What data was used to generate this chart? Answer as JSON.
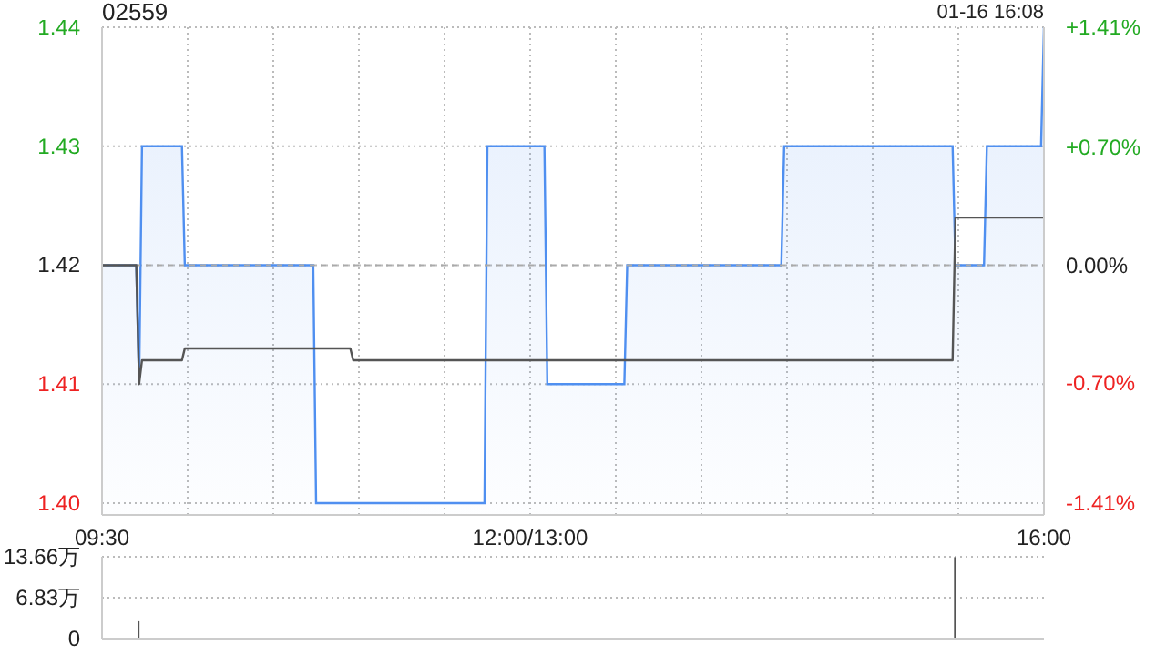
{
  "chart_data": [
    {
      "type": "area",
      "title": "02559",
      "subtitle": "01-16 16:08",
      "categories": [
        "09:30",
        null,
        null,
        null,
        null,
        null,
        null,
        null,
        null,
        null,
        null,
        null,
        null,
        null,
        null,
        null,
        null,
        null,
        null,
        null,
        null,
        null,
        null,
        null,
        null,
        null,
        null,
        null,
        null,
        null,
        null,
        null,
        null,
        null,
        null,
        null,
        null,
        null,
        null,
        null,
        null,
        null,
        null,
        null,
        null,
        null,
        null,
        null,
        null,
        null,
        null,
        null,
        null,
        null,
        null,
        null,
        null,
        null,
        null,
        null,
        null,
        null,
        null,
        null,
        null,
        null,
        null,
        null,
        null,
        null,
        null,
        null,
        null,
        null,
        null,
        null,
        null,
        null,
        null,
        null,
        null,
        null,
        null,
        null,
        null,
        null,
        null,
        null,
        null,
        null,
        null,
        null,
        null,
        null,
        null,
        null,
        null,
        null,
        null,
        null,
        null,
        null,
        null,
        null,
        null,
        null,
        null,
        null,
        null,
        null,
        null,
        null,
        null,
        null,
        null,
        null,
        null,
        null,
        null,
        null,
        null,
        null,
        null,
        null,
        null,
        null,
        null,
        null,
        null,
        null,
        null,
        null,
        null,
        null,
        null,
        null,
        null,
        null,
        null,
        null,
        null,
        null,
        null,
        null,
        null,
        null,
        null,
        null,
        null,
        null,
        "12:00/13:00",
        null,
        null,
        null,
        null,
        null,
        null,
        null,
        null,
        null,
        null,
        null,
        null,
        null,
        null,
        null,
        null,
        null,
        null,
        null,
        null,
        null,
        null,
        null,
        null,
        null,
        null,
        null,
        null,
        null,
        null,
        null,
        null,
        null,
        null,
        null,
        null,
        null,
        null,
        null,
        null,
        null,
        null,
        null,
        null,
        null,
        null,
        null,
        null,
        null,
        null,
        null,
        null,
        null,
        null,
        null,
        null,
        null,
        null,
        null,
        null,
        null,
        null,
        null,
        null,
        null,
        null,
        null,
        null,
        null,
        null,
        null,
        null,
        null,
        null,
        null,
        null,
        null,
        null,
        null,
        null,
        null,
        null,
        null,
        null,
        null,
        null,
        null,
        null,
        null,
        null,
        null,
        null,
        null,
        null,
        null,
        null,
        null,
        null,
        null,
        null,
        null,
        null,
        null,
        null,
        null,
        null,
        null,
        null,
        null,
        null,
        null,
        null,
        null,
        null,
        null,
        null,
        null,
        null,
        null,
        null,
        null,
        null,
        null,
        null,
        null,
        null,
        null,
        null,
        null,
        null,
        null,
        null,
        null,
        null,
        null,
        null,
        null,
        null,
        null,
        null,
        null,
        null,
        null,
        null,
        null,
        null,
        null,
        null,
        null,
        null,
        null,
        null,
        null,
        null,
        null,
        null,
        null,
        null,
        null,
        null,
        null,
        null,
        null,
        null,
        null,
        null,
        null,
        null,
        null,
        null,
        null,
        null,
        null,
        null,
        null,
        null,
        null,
        null,
        null,
        "16:00"
      ],
      "ylim": [
        1.399,
        1.44
      ],
      "yticks": [
        {
          "value": 1.4,
          "label": "1.40"
        },
        1.41,
        1.42,
        1.43,
        1.44
      ],
      "y2lim": [
        -1.48,
        1.41
      ],
      "y2ticks": [
        {
          "value": -1.41,
          "label": "-1.41%"
        },
        {
          "value": -0.7,
          "label": "-0.70%"
        },
        {
          "value": 0,
          "label": "0.00%"
        },
        {
          "value": 0.7,
          "label": "+0.70%"
        },
        {
          "value": 1.41,
          "label": "+1.41%"
        }
      ],
      "grid": true,
      "ref_lines": [
        {
          "axis": "y",
          "value": 1.42,
          "color": "#aaaaaa",
          "line_style": "dashed"
        }
      ],
      "series": [
        {
          "color": "#4f8ff0",
          "values": [
            1.42,
            1.42,
            1.42,
            1.42,
            1.42,
            1.42,
            1.42,
            1.42,
            1.42,
            1.42,
            1.42,
            1.42,
            1.42,
            1.41,
            1.43,
            1.43,
            1.43,
            1.43,
            1.43,
            1.43,
            1.43,
            1.43,
            1.43,
            1.43,
            1.43,
            1.43,
            1.43,
            1.43,
            1.43,
            1.42,
            1.42,
            1.42,
            1.42,
            1.42,
            1.42,
            1.42,
            1.42,
            1.42,
            1.42,
            1.42,
            1.42,
            1.42,
            1.42,
            1.42,
            1.42,
            1.42,
            1.42,
            1.42,
            1.42,
            1.42,
            1.42,
            1.42,
            1.42,
            1.42,
            1.42,
            1.42,
            1.42,
            1.42,
            1.42,
            1.42,
            1.42,
            1.42,
            1.42,
            1.42,
            1.42,
            1.42,
            1.42,
            1.42,
            1.42,
            1.42,
            1.42,
            1.42,
            1.42,
            1.42,
            1.42,
            1.4,
            1.4,
            1.4,
            1.4,
            1.4,
            1.4,
            1.4,
            1.4,
            1.4,
            1.4,
            1.4,
            1.4,
            1.4,
            1.4,
            1.4,
            1.4,
            1.4,
            1.4,
            1.4,
            1.4,
            1.4,
            1.4,
            1.4,
            1.4,
            1.4,
            1.4,
            1.4,
            1.4,
            1.4,
            1.4,
            1.4,
            1.4,
            1.4,
            1.4,
            1.4,
            1.4,
            1.4,
            1.4,
            1.4,
            1.4,
            1.4,
            1.4,
            1.4,
            1.4,
            1.4,
            1.4,
            1.4,
            1.4,
            1.4,
            1.4,
            1.4,
            1.4,
            1.4,
            1.4,
            1.4,
            1.4,
            1.4,
            1.4,
            1.4,
            1.4,
            1.43,
            1.43,
            1.43,
            1.43,
            1.43,
            1.43,
            1.43,
            1.43,
            1.43,
            1.43,
            1.43,
            1.43,
            1.43,
            1.43,
            1.43,
            1.43,
            1.43,
            1.43,
            1.43,
            1.43,
            1.43,
            1.41,
            1.41,
            1.41,
            1.41,
            1.41,
            1.41,
            1.41,
            1.41,
            1.41,
            1.41,
            1.41,
            1.41,
            1.41,
            1.41,
            1.41,
            1.41,
            1.41,
            1.41,
            1.41,
            1.41,
            1.41,
            1.41,
            1.41,
            1.41,
            1.41,
            1.41,
            1.41,
            1.41,
            1.42,
            1.42,
            1.42,
            1.42,
            1.42,
            1.42,
            1.42,
            1.42,
            1.42,
            1.42,
            1.42,
            1.42,
            1.42,
            1.42,
            1.42,
            1.42,
            1.42,
            1.42,
            1.42,
            1.42,
            1.42,
            1.42,
            1.42,
            1.42,
            1.42,
            1.42,
            1.42,
            1.42,
            1.42,
            1.42,
            1.42,
            1.42,
            1.42,
            1.42,
            1.42,
            1.42,
            1.42,
            1.42,
            1.42,
            1.42,
            1.42,
            1.42,
            1.42,
            1.42,
            1.42,
            1.42,
            1.42,
            1.42,
            1.42,
            1.42,
            1.42,
            1.42,
            1.42,
            1.42,
            1.42,
            1.43,
            1.43,
            1.43,
            1.43,
            1.43,
            1.43,
            1.43,
            1.43,
            1.43,
            1.43,
            1.43,
            1.43,
            1.43,
            1.43,
            1.43,
            1.43,
            1.43,
            1.43,
            1.43,
            1.43,
            1.43,
            1.43,
            1.43,
            1.43,
            1.43,
            1.43,
            1.43,
            1.43,
            1.43,
            1.43,
            1.43,
            1.43,
            1.43,
            1.43,
            1.43,
            1.43,
            1.43,
            1.43,
            1.43,
            1.43,
            1.43,
            1.43,
            1.43,
            1.43,
            1.43,
            1.43,
            1.43,
            1.43,
            1.43,
            1.43,
            1.43,
            1.43,
            1.43,
            1.43,
            1.43,
            1.43,
            1.43,
            1.43,
            1.43,
            1.43,
            1.42,
            1.42,
            1.42,
            1.42,
            1.42,
            1.42,
            1.42,
            1.42,
            1.42,
            1.42,
            1.42,
            1.43,
            1.43,
            1.43,
            1.43,
            1.43,
            1.43,
            1.43,
            1.43,
            1.43,
            1.43,
            1.43,
            1.43,
            1.43,
            1.43,
            1.43,
            1.43,
            1.43,
            1.43,
            1.43,
            1.43,
            1.44
          ]
        },
        {
          "type": "line",
          "color": "#555555",
          "values": [
            1.42,
            1.42,
            1.42,
            1.42,
            1.42,
            1.42,
            1.42,
            1.42,
            1.42,
            1.42,
            1.42,
            1.42,
            1.42,
            1.41,
            1.412,
            1.412,
            1.412,
            1.412,
            1.412,
            1.412,
            1.412,
            1.412,
            1.412,
            1.412,
            1.412,
            1.412,
            1.412,
            1.412,
            1.412,
            1.413,
            1.413,
            1.413,
            1.413,
            1.413,
            1.413,
            1.413,
            1.413,
            1.413,
            1.413,
            1.413,
            1.413,
            1.413,
            1.413,
            1.413,
            1.413,
            1.413,
            1.413,
            1.413,
            1.413,
            1.413,
            1.413,
            1.413,
            1.413,
            1.413,
            1.413,
            1.413,
            1.413,
            1.413,
            1.413,
            1.413,
            1.413,
            1.413,
            1.413,
            1.413,
            1.413,
            1.413,
            1.413,
            1.413,
            1.413,
            1.413,
            1.413,
            1.413,
            1.413,
            1.413,
            1.413,
            1.413,
            1.413,
            1.413,
            1.413,
            1.413,
            1.413,
            1.413,
            1.413,
            1.413,
            1.413,
            1.413,
            1.413,
            1.413,
            1.412,
            1.412,
            1.412,
            1.412,
            1.412,
            1.412,
            1.412,
            1.412,
            1.412,
            1.412,
            1.412,
            1.412,
            1.412,
            1.412,
            1.412,
            1.412,
            1.412,
            1.412,
            1.412,
            1.412,
            1.412,
            1.412,
            1.412,
            1.412,
            1.412,
            1.412,
            1.412,
            1.412,
            1.412,
            1.412,
            1.412,
            1.412,
            1.412,
            1.412,
            1.412,
            1.412,
            1.412,
            1.412,
            1.412,
            1.412,
            1.412,
            1.412,
            1.412,
            1.412,
            1.412,
            1.412,
            1.412,
            1.412,
            1.412,
            1.412,
            1.412,
            1.412,
            1.412,
            1.412,
            1.412,
            1.412,
            1.412,
            1.412,
            1.412,
            1.412,
            1.412,
            1.412,
            1.412,
            1.412,
            1.412,
            1.412,
            1.412,
            1.412,
            1.412,
            1.412,
            1.412,
            1.412,
            1.412,
            1.412,
            1.412,
            1.412,
            1.412,
            1.412,
            1.412,
            1.412,
            1.412,
            1.412,
            1.412,
            1.412,
            1.412,
            1.412,
            1.412,
            1.412,
            1.412,
            1.412,
            1.412,
            1.412,
            1.412,
            1.412,
            1.412,
            1.412,
            1.412,
            1.412,
            1.412,
            1.412,
            1.412,
            1.412,
            1.412,
            1.412,
            1.412,
            1.412,
            1.412,
            1.412,
            1.412,
            1.412,
            1.412,
            1.412,
            1.412,
            1.412,
            1.412,
            1.412,
            1.412,
            1.412,
            1.412,
            1.412,
            1.412,
            1.412,
            1.412,
            1.412,
            1.412,
            1.412,
            1.412,
            1.412,
            1.412,
            1.412,
            1.412,
            1.412,
            1.412,
            1.412,
            1.412,
            1.412,
            1.412,
            1.412,
            1.412,
            1.412,
            1.412,
            1.412,
            1.412,
            1.412,
            1.412,
            1.412,
            1.412,
            1.412,
            1.412,
            1.412,
            1.412,
            1.412,
            1.412,
            1.412,
            1.412,
            1.412,
            1.412,
            1.412,
            1.412,
            1.412,
            1.412,
            1.412,
            1.412,
            1.412,
            1.412,
            1.412,
            1.412,
            1.412,
            1.412,
            1.412,
            1.412,
            1.412,
            1.412,
            1.412,
            1.412,
            1.412,
            1.412,
            1.412,
            1.412,
            1.412,
            1.412,
            1.412,
            1.412,
            1.412,
            1.412,
            1.412,
            1.412,
            1.412,
            1.412,
            1.412,
            1.412,
            1.412,
            1.412,
            1.412,
            1.412,
            1.412,
            1.412,
            1.412,
            1.412,
            1.412,
            1.412,
            1.412,
            1.412,
            1.412,
            1.412,
            1.412,
            1.412,
            1.412,
            1.412,
            1.412,
            1.412,
            1.424,
            1.424,
            1.424,
            1.424,
            1.424,
            1.424,
            1.424,
            1.424,
            1.424,
            1.424,
            1.424,
            1.424,
            1.424,
            1.424,
            1.424,
            1.424,
            1.424,
            1.424,
            1.424,
            1.424,
            1.424,
            1.424,
            1.424,
            1.424,
            1.424,
            1.424,
            1.424,
            1.424,
            1.424,
            1.424,
            1.424,
            1.424
          ]
        }
      ]
    },
    {
      "type": "bar",
      "tick_labels": "y",
      "ylim": [
        0,
        13.66
      ],
      "yticks": [
        0,
        {
          "value": 6.83,
          "label": "6.83万"
        },
        {
          "value": 13.66,
          "label": "13.66万"
        }
      ],
      "grid": "y",
      "categories": [
        null,
        null,
        null,
        null,
        null,
        null,
        null,
        null,
        null,
        null,
        null,
        null,
        null,
        null,
        null,
        null,
        null,
        null,
        null,
        null,
        null,
        null,
        null,
        null,
        null,
        null,
        null,
        null,
        null,
        null,
        null,
        null,
        null,
        null,
        null,
        null,
        null,
        null,
        null,
        null,
        null,
        null,
        null,
        null,
        null,
        null,
        null,
        null,
        null,
        null,
        null,
        null,
        null,
        null,
        null,
        null,
        null,
        null,
        null,
        null,
        null,
        null,
        null,
        null,
        null,
        null,
        null,
        null,
        null,
        null,
        null,
        null,
        null,
        null,
        null,
        null,
        null,
        null,
        null,
        null,
        null,
        null,
        null,
        null,
        null,
        null,
        null,
        null,
        null,
        null,
        null,
        null,
        null,
        null,
        null,
        null,
        null,
        null,
        null,
        null,
        null,
        null,
        null,
        null,
        null,
        null,
        null,
        null,
        null,
        null,
        null,
        null,
        null,
        null,
        null,
        null,
        null,
        null,
        null,
        null,
        null,
        null,
        null,
        null,
        null,
        null,
        null,
        null,
        null,
        null,
        null,
        null,
        null,
        null,
        null,
        null,
        null,
        null,
        null,
        null,
        null,
        null,
        null,
        null,
        null,
        null,
        null,
        null,
        null,
        null,
        null,
        null,
        null,
        null,
        null,
        null,
        null,
        null,
        null,
        null,
        null,
        null,
        null,
        null,
        null,
        null,
        null,
        null,
        null,
        null,
        null,
        null,
        null,
        null,
        null,
        null,
        null,
        null,
        null,
        null,
        null,
        null,
        null,
        null,
        null,
        null,
        null,
        null,
        null,
        null,
        null,
        null,
        null,
        null,
        null,
        null,
        null,
        null,
        null,
        null,
        null,
        null,
        null,
        null,
        null,
        null,
        null,
        null,
        null,
        null,
        null,
        null,
        null,
        null,
        null,
        null,
        null,
        null,
        null,
        null,
        null,
        null,
        null,
        null,
        null,
        null,
        null,
        null,
        null,
        null,
        null,
        null,
        null,
        null,
        null,
        null,
        null,
        null,
        null,
        null,
        null,
        null,
        null,
        null,
        null,
        null,
        null,
        null,
        null,
        null,
        null,
        null,
        null,
        null,
        null,
        null,
        null,
        null,
        null,
        null,
        null,
        null,
        null,
        null,
        null,
        null,
        null,
        null,
        null,
        null,
        null,
        null,
        null,
        null,
        null,
        null,
        null,
        null,
        null,
        null,
        null,
        null,
        null,
        null,
        null,
        null,
        null,
        null,
        null,
        null,
        null,
        null,
        null,
        null,
        null,
        null,
        null,
        null,
        null,
        null,
        null,
        null,
        null,
        null,
        null,
        null,
        null,
        null,
        null,
        null,
        null,
        null,
        null,
        null,
        null,
        null,
        null,
        null,
        null,
        null,
        null,
        null,
        null,
        null,
        null,
        null,
        null,
        null,
        null,
        null,
        null
      ],
      "series": [
        {
          "color": "#555555",
          "values": [
            null,
            null,
            null,
            null,
            null,
            null,
            null,
            null,
            null,
            null,
            null,
            null,
            null,
            2.9,
            null,
            null,
            null,
            null,
            null,
            null,
            null,
            null,
            null,
            null,
            null,
            null,
            null,
            null,
            null,
            null,
            null,
            null,
            null,
            null,
            null,
            null,
            null,
            null,
            null,
            null,
            null,
            null,
            null,
            null,
            null,
            null,
            null,
            null,
            null,
            null,
            null,
            null,
            null,
            null,
            null,
            null,
            null,
            null,
            null,
            null,
            null,
            null,
            null,
            null,
            null,
            null,
            null,
            null,
            null,
            null,
            null,
            null,
            null,
            null,
            null,
            null,
            null,
            null,
            null,
            null,
            null,
            null,
            null,
            null,
            null,
            null,
            null,
            null,
            null,
            null,
            null,
            null,
            null,
            null,
            null,
            null,
            null,
            null,
            null,
            null,
            null,
            null,
            null,
            null,
            null,
            null,
            null,
            null,
            null,
            null,
            null,
            null,
            null,
            null,
            null,
            null,
            null,
            null,
            null,
            null,
            null,
            null,
            null,
            null,
            null,
            null,
            null,
            null,
            null,
            null,
            null,
            null,
            null,
            null,
            null,
            null,
            null,
            null,
            null,
            null,
            null,
            null,
            null,
            null,
            null,
            null,
            null,
            null,
            null,
            null,
            null,
            null,
            null,
            null,
            null,
            null,
            null,
            null,
            null,
            null,
            null,
            null,
            null,
            null,
            null,
            null,
            null,
            null,
            null,
            null,
            null,
            null,
            null,
            null,
            null,
            null,
            null,
            null,
            null,
            null,
            null,
            null,
            null,
            null,
            null,
            null,
            null,
            null,
            null,
            null,
            null,
            null,
            null,
            null,
            null,
            null,
            null,
            null,
            null,
            null,
            null,
            null,
            null,
            null,
            null,
            null,
            null,
            null,
            null,
            null,
            null,
            null,
            null,
            null,
            null,
            null,
            null,
            null,
            null,
            null,
            null,
            null,
            null,
            null,
            null,
            null,
            null,
            null,
            null,
            null,
            null,
            null,
            null,
            null,
            null,
            null,
            null,
            null,
            null,
            null,
            null,
            null,
            null,
            null,
            null,
            null,
            null,
            null,
            null,
            null,
            null,
            null,
            null,
            null,
            null,
            null,
            null,
            null,
            null,
            null,
            null,
            null,
            null,
            null,
            null,
            null,
            null,
            null,
            null,
            null,
            null,
            null,
            null,
            null,
            null,
            null,
            null,
            null,
            null,
            null,
            null,
            null,
            null,
            null,
            null,
            null,
            null,
            null,
            null,
            null,
            null,
            null,
            null,
            null,
            null,
            null,
            null,
            null,
            null,
            13.6,
            null,
            null,
            null,
            null,
            null,
            null,
            null,
            null,
            null,
            null,
            null,
            null,
            null,
            null,
            null,
            null,
            null,
            null,
            null,
            null,
            null,
            null,
            null,
            null,
            null,
            null,
            null,
            null,
            null,
            null,
            null
          ]
        }
      ]
    }
  ]
}
